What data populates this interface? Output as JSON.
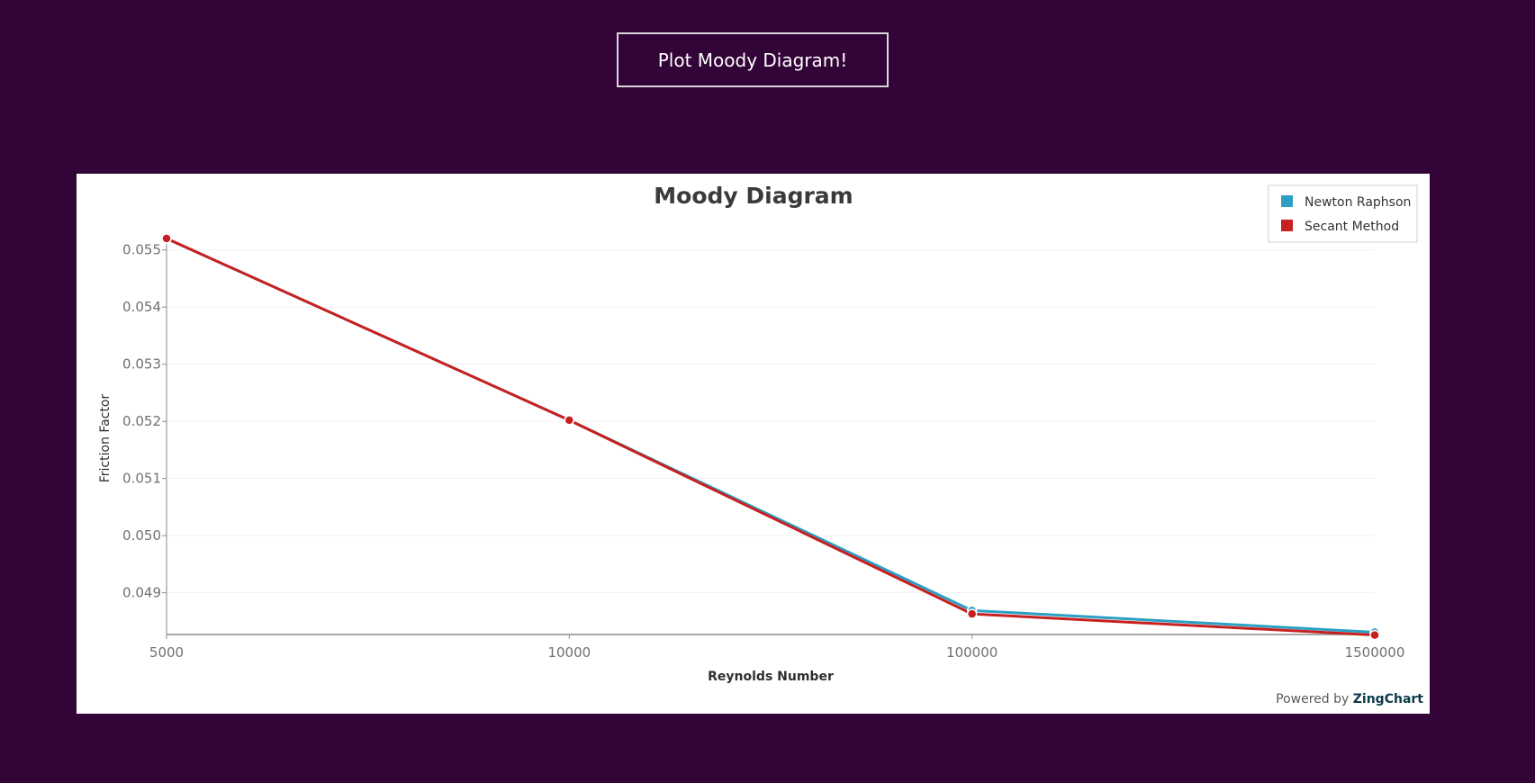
{
  "header": {
    "plot_button_label": "Plot Moody Diagram!"
  },
  "colors": {
    "background": "#330437",
    "newton": "#2b9fc4",
    "secant": "#c8201f"
  },
  "credit": {
    "prefix": "Powered by",
    "brand": "ZingChart"
  },
  "chart_data": {
    "type": "line",
    "title": "Moody Diagram",
    "xlabel": "Reynolds Number",
    "ylabel": "Friction Factor",
    "categories": [
      "5000",
      "10000",
      "100000",
      "1500000"
    ],
    "y_ticks": [
      "0.049",
      "0.050",
      "0.051",
      "0.052",
      "0.053",
      "0.054",
      "0.055"
    ],
    "ylim": [
      0.04827,
      0.0552
    ],
    "grid": true,
    "legend_position": "top-right",
    "series": [
      {
        "name": "Newton Raphson",
        "color": "#2b9fc4",
        "values": [
          0.0552,
          0.05202,
          0.04869,
          0.04831
        ]
      },
      {
        "name": "Secant Method",
        "color": "#c8201f",
        "values": [
          0.0552,
          0.05202,
          0.04863,
          0.04826
        ]
      }
    ]
  }
}
